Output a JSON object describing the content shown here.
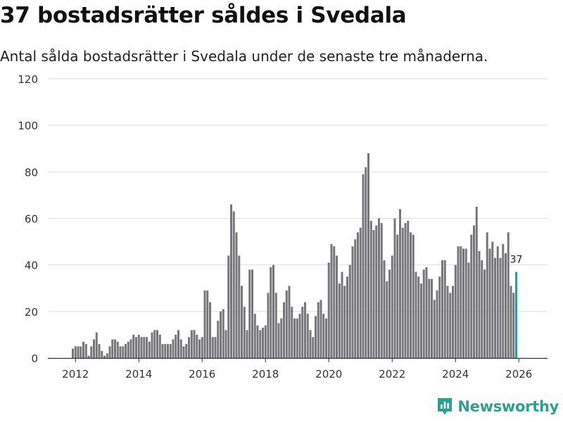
{
  "title": "37 bostadsrätter såldes i Svedala",
  "subtitle": "Antal sålda bostadsrätter i Svedala under de senaste tre månaderna.",
  "brand": {
    "name": "Newsworthy",
    "icon": "newsworthy-logo-icon"
  },
  "colors": {
    "bar": "#77767b",
    "highlight": "#2f9f94",
    "grid": "#dddddd",
    "axis": "#333333",
    "text": "#333333"
  },
  "chart_data": {
    "type": "bar",
    "title": "37 bostadsrätter såldes i Svedala",
    "xlabel": "",
    "ylabel": "",
    "ylim": [
      0,
      120
    ],
    "yticks": [
      0,
      20,
      40,
      60,
      80,
      100,
      120
    ],
    "xticks": [
      "2012",
      "2014",
      "2016",
      "2018",
      "2020",
      "2022",
      "2024",
      "2026"
    ],
    "x_start": "2011-12",
    "grid": true,
    "values": [
      4,
      5,
      5,
      5,
      7,
      6,
      1,
      5,
      8,
      11,
      6,
      3,
      1,
      2,
      5,
      8,
      8,
      7,
      5,
      5,
      6,
      7,
      8,
      10,
      9,
      10,
      9,
      9,
      9,
      7,
      11,
      12,
      12,
      10,
      6,
      6,
      6,
      6,
      8,
      10,
      12,
      8,
      5,
      6,
      9,
      12,
      12,
      10,
      8,
      9,
      29,
      29,
      24,
      9,
      9,
      16,
      20,
      21,
      12,
      44,
      66,
      63,
      54,
      44,
      31,
      22,
      12,
      38,
      38,
      19,
      14,
      12,
      13,
      14,
      28,
      39,
      40,
      28,
      15,
      17,
      24,
      29,
      31,
      22,
      17,
      17,
      19,
      22,
      24,
      19,
      12,
      9,
      18,
      24,
      25,
      19,
      17,
      41,
      49,
      48,
      44,
      32,
      37,
      31,
      35,
      40,
      48,
      51,
      54,
      56,
      79,
      82,
      88,
      59,
      55,
      57,
      60,
      58,
      42,
      33,
      38,
      44,
      60,
      53,
      64,
      56,
      58,
      59,
      54,
      53,
      37,
      35,
      32,
      38,
      39,
      34,
      34,
      25,
      29,
      35,
      42,
      42,
      31,
      28,
      31,
      40,
      48,
      48,
      47,
      47,
      41,
      53,
      57,
      65,
      46,
      42,
      38,
      54,
      47,
      50,
      43,
      48,
      43,
      49,
      45,
      54,
      31,
      28,
      37
    ],
    "highlight_last": 1,
    "last_label": "37"
  }
}
